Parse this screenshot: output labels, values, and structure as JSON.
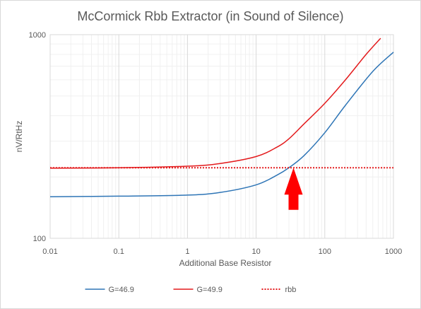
{
  "chart_data": {
    "type": "line",
    "title": "McCormick Rbb Extractor (in Sound of Silence)",
    "xlabel": "Additional Base Resistor",
    "ylabel": "nV/RtHz",
    "xscale": "log",
    "yscale": "log",
    "xlim": [
      0.01,
      1000
    ],
    "ylim": [
      100,
      1000
    ],
    "xticks": [
      "0.01",
      "0.1",
      "1",
      "10",
      "100",
      "1000"
    ],
    "yticks": [
      "100",
      "1000"
    ],
    "grid": true,
    "legend_position": "bottom",
    "series": [
      {
        "name": "G=46.9",
        "color": "#2e75b6",
        "style": "solid",
        "x": [
          0.01,
          0.1,
          1,
          3,
          10,
          20,
          30,
          50,
          100,
          200,
          500,
          1000
        ],
        "y": [
          160,
          161,
          163,
          168,
          183,
          204,
          222,
          255,
          330,
          450,
          660,
          820
        ]
      },
      {
        "name": "G=49.9",
        "color": "#e31a1c",
        "style": "solid",
        "x": [
          0.01,
          0.1,
          1,
          3,
          10,
          20,
          30,
          50,
          100,
          200,
          400,
          650
        ],
        "y": [
          221,
          222,
          226,
          233,
          252,
          280,
          308,
          365,
          460,
          600,
          800,
          960
        ]
      },
      {
        "name": "rbb",
        "color": "#e31a1c",
        "style": "dotted",
        "x": [
          0.01,
          1000
        ],
        "y": [
          222,
          222
        ]
      }
    ],
    "annotation": {
      "type": "arrow",
      "color": "#ff0000",
      "x": 35,
      "y_tip": 222,
      "y_tail": 138
    }
  }
}
